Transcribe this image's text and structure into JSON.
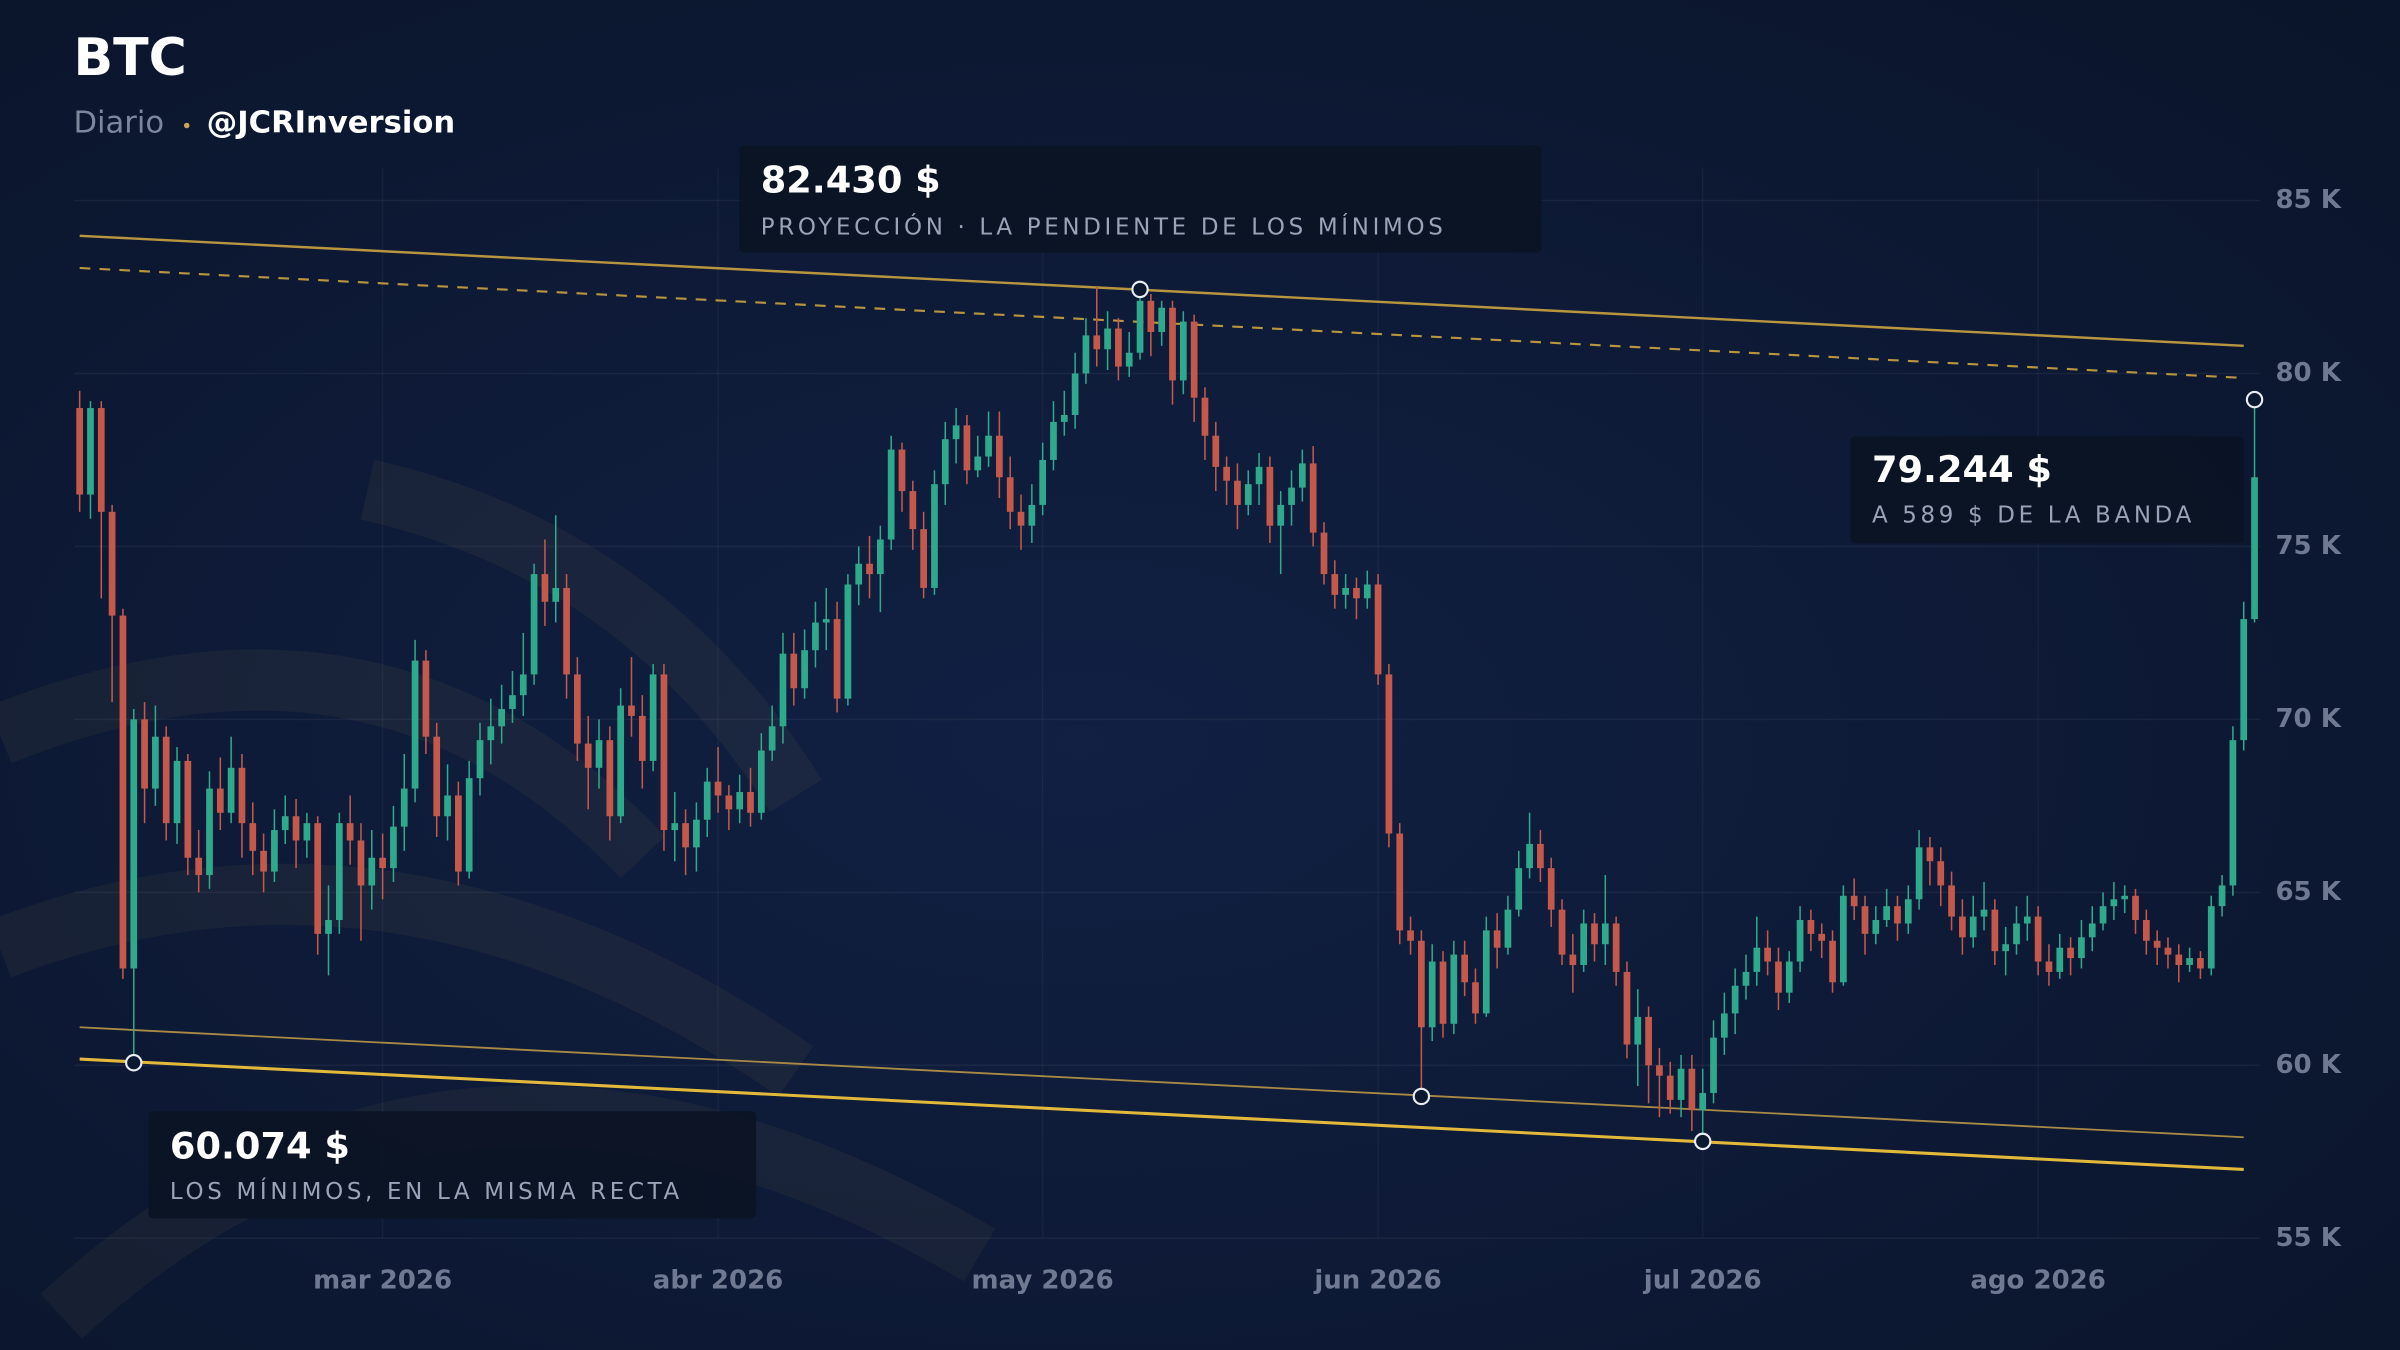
{
  "chart_data": {
    "type": "candlestick",
    "title": "BTC",
    "subtitle": "Diario",
    "author": "@JCRInversion",
    "up_color": "#2fa98c",
    "down_color": "#c4594b",
    "xlim": [
      -0.5,
      201.5
    ],
    "xticks": [
      {
        "value": 28,
        "label": "mar 2026"
      },
      {
        "value": 59,
        "label": "abr 2026"
      },
      {
        "value": 89,
        "label": "may 2026"
      },
      {
        "value": 120,
        "label": "jun 2026"
      },
      {
        "value": 150,
        "label": "jul 2026"
      },
      {
        "value": 181,
        "label": "ago 2026"
      }
    ],
    "ylim": [
      55,
      85
    ],
    "yticks": [
      {
        "value": 55,
        "label": "55 K"
      },
      {
        "value": 60,
        "label": "60 K"
      },
      {
        "value": 65,
        "label": "65 K"
      },
      {
        "value": 70,
        "label": "70 K"
      },
      {
        "value": 75,
        "label": "75 K"
      },
      {
        "value": 80,
        "label": "80 K"
      },
      {
        "value": 85,
        "label": "85 K"
      }
    ],
    "grid": true,
    "ohlc": [
      [
        79,
        79.5,
        76,
        76.5
      ],
      [
        76.5,
        79.2,
        75.8,
        79
      ],
      [
        79,
        79.2,
        73.5,
        76
      ],
      [
        76,
        76.2,
        70.5,
        73
      ],
      [
        73,
        73.2,
        62.5,
        62.8
      ],
      [
        62.8,
        70.3,
        60.074,
        70
      ],
      [
        70,
        70.5,
        67,
        68
      ],
      [
        68,
        70.4,
        67.5,
        69.5
      ],
      [
        69.5,
        69.8,
        66.5,
        67
      ],
      [
        67,
        69.2,
        66.4,
        68.8
      ],
      [
        68.8,
        69,
        65.5,
        66
      ],
      [
        66,
        66.8,
        65,
        65.5
      ],
      [
        65.5,
        68.5,
        65.1,
        68
      ],
      [
        68,
        68.9,
        66.8,
        67.3
      ],
      [
        67.3,
        69.5,
        67,
        68.6
      ],
      [
        68.6,
        69,
        66,
        67
      ],
      [
        67,
        67.6,
        65.5,
        66.2
      ],
      [
        66.2,
        66.7,
        65,
        65.6
      ],
      [
        65.6,
        67.4,
        65.3,
        66.8
      ],
      [
        66.8,
        67.8,
        66.4,
        67.2
      ],
      [
        67.2,
        67.7,
        65.7,
        66.5
      ],
      [
        66.5,
        67.3,
        66,
        67
      ],
      [
        67,
        67.2,
        63.2,
        63.8
      ],
      [
        63.8,
        65.2,
        62.6,
        64.2
      ],
      [
        64.2,
        67.3,
        63.8,
        67
      ],
      [
        67,
        67.8,
        65.8,
        66.5
      ],
      [
        66.5,
        67,
        63.6,
        65.2
      ],
      [
        65.2,
        66.8,
        64.5,
        66
      ],
      [
        66,
        66.7,
        64.8,
        65.7
      ],
      [
        65.7,
        67.5,
        65.3,
        66.9
      ],
      [
        66.9,
        69,
        66.2,
        68
      ],
      [
        68,
        72.3,
        67.6,
        71.7
      ],
      [
        71.7,
        72,
        69,
        69.5
      ],
      [
        69.5,
        69.9,
        66.6,
        67.2
      ],
      [
        67.2,
        68.7,
        66.5,
        67.8
      ],
      [
        67.8,
        68.2,
        65.2,
        65.6
      ],
      [
        65.6,
        68.8,
        65.4,
        68.3
      ],
      [
        68.3,
        69.9,
        67.8,
        69.4
      ],
      [
        69.4,
        70.6,
        68.7,
        69.8
      ],
      [
        69.8,
        71,
        69.3,
        70.3
      ],
      [
        70.3,
        71.4,
        69.9,
        70.7
      ],
      [
        70.7,
        72.5,
        70.1,
        71.3
      ],
      [
        71.3,
        74.5,
        71,
        74.2
      ],
      [
        74.2,
        75.2,
        72.7,
        73.4
      ],
      [
        73.4,
        75.9,
        72.8,
        73.8
      ],
      [
        73.8,
        74.2,
        70.6,
        71.3
      ],
      [
        71.3,
        71.8,
        68.8,
        69.3
      ],
      [
        69.3,
        70.1,
        67.4,
        68.6
      ],
      [
        68.6,
        70,
        68,
        69.4
      ],
      [
        69.4,
        69.8,
        66.5,
        67.2
      ],
      [
        67.2,
        70.9,
        67,
        70.4
      ],
      [
        70.4,
        71.8,
        69.5,
        70.1
      ],
      [
        70.1,
        70.7,
        68,
        68.8
      ],
      [
        68.8,
        71.6,
        68.5,
        71.3
      ],
      [
        71.3,
        71.6,
        66.2,
        66.8
      ],
      [
        66.8,
        67.9,
        65.9,
        67
      ],
      [
        67,
        67.4,
        65.5,
        66.3
      ],
      [
        66.3,
        67.6,
        65.6,
        67.1
      ],
      [
        67.1,
        68.6,
        66.6,
        68.2
      ],
      [
        68.2,
        69.2,
        67.3,
        67.8
      ],
      [
        67.8,
        68.1,
        66.8,
        67.4
      ],
      [
        67.4,
        68.4,
        67,
        67.9
      ],
      [
        67.9,
        68.6,
        66.9,
        67.3
      ],
      [
        67.3,
        69.6,
        67.1,
        69.1
      ],
      [
        69.1,
        70.4,
        68.8,
        69.8
      ],
      [
        69.8,
        72.5,
        69.3,
        71.9
      ],
      [
        71.9,
        72.5,
        70.4,
        70.9
      ],
      [
        70.9,
        72.6,
        70.6,
        72
      ],
      [
        72,
        73.4,
        71.5,
        72.8
      ],
      [
        72.8,
        73.8,
        72,
        72.9
      ],
      [
        72.9,
        73.4,
        70.2,
        70.6
      ],
      [
        70.6,
        74.2,
        70.4,
        73.9
      ],
      [
        73.9,
        75,
        73.3,
        74.5
      ],
      [
        74.5,
        75.3,
        73.5,
        74.2
      ],
      [
        74.2,
        75.6,
        73.1,
        75.2
      ],
      [
        75.2,
        78.2,
        74.9,
        77.8
      ],
      [
        77.8,
        78,
        76,
        76.6
      ],
      [
        76.6,
        76.9,
        74.9,
        75.5
      ],
      [
        75.5,
        76,
        73.5,
        73.8
      ],
      [
        73.8,
        77.2,
        73.6,
        76.8
      ],
      [
        76.8,
        78.6,
        76.2,
        78.1
      ],
      [
        78.1,
        79,
        77.4,
        78.5
      ],
      [
        78.5,
        78.8,
        76.8,
        77.2
      ],
      [
        77.2,
        78.2,
        77,
        77.6
      ],
      [
        77.6,
        78.9,
        77.3,
        78.2
      ],
      [
        78.2,
        78.9,
        76.4,
        77
      ],
      [
        77,
        77.6,
        75.5,
        76
      ],
      [
        76,
        76.5,
        74.9,
        75.6
      ],
      [
        75.6,
        76.8,
        75.1,
        76.2
      ],
      [
        76.2,
        78,
        75.9,
        77.5
      ],
      [
        77.5,
        79.2,
        77.2,
        78.6
      ],
      [
        78.6,
        79.5,
        78.2,
        78.8
      ],
      [
        78.8,
        80.6,
        78.4,
        80
      ],
      [
        80,
        81.6,
        79.7,
        81.1
      ],
      [
        81.1,
        82.5,
        80.2,
        80.7
      ],
      [
        80.7,
        81.8,
        80.1,
        81.3
      ],
      [
        81.3,
        81.6,
        79.8,
        80.2
      ],
      [
        80.2,
        81.2,
        79.9,
        80.6
      ],
      [
        80.6,
        82.43,
        80.4,
        82.1
      ],
      [
        82.1,
        82.3,
        80.5,
        81.2
      ],
      [
        81.2,
        82.1,
        80.8,
        81.9
      ],
      [
        81.9,
        82.1,
        79.1,
        79.8
      ],
      [
        79.8,
        81.8,
        79.4,
        81.5
      ],
      [
        81.5,
        81.7,
        78.6,
        79.3
      ],
      [
        79.3,
        79.6,
        77.5,
        78.2
      ],
      [
        78.2,
        78.6,
        76.6,
        77.3
      ],
      [
        77.3,
        77.6,
        76.2,
        76.9
      ],
      [
        76.9,
        77.4,
        75.5,
        76.2
      ],
      [
        76.2,
        77.2,
        75.9,
        76.8
      ],
      [
        76.8,
        77.7,
        76.2,
        77.3
      ],
      [
        77.3,
        77.6,
        75.1,
        75.6
      ],
      [
        75.6,
        76.6,
        74.2,
        76.2
      ],
      [
        76.2,
        77.2,
        75.6,
        76.7
      ],
      [
        76.7,
        77.8,
        76.3,
        77.4
      ],
      [
        77.4,
        77.9,
        75,
        75.4
      ],
      [
        75.4,
        75.7,
        73.9,
        74.2
      ],
      [
        74.2,
        74.6,
        73.2,
        73.6
      ],
      [
        73.6,
        74.2,
        73.2,
        73.8
      ],
      [
        73.8,
        74.1,
        72.9,
        73.5
      ],
      [
        73.5,
        74.3,
        73.2,
        73.9
      ],
      [
        73.9,
        74.2,
        71,
        71.3
      ],
      [
        71.3,
        71.6,
        66.3,
        66.7
      ],
      [
        66.7,
        67,
        63.5,
        63.9
      ],
      [
        63.9,
        64.3,
        63.2,
        63.6
      ],
      [
        63.6,
        63.9,
        59.1,
        61.1
      ],
      [
        61.1,
        63.5,
        60.7,
        63
      ],
      [
        63,
        63.3,
        60.8,
        61.2
      ],
      [
        61.2,
        63.6,
        60.9,
        63.2
      ],
      [
        63.2,
        63.6,
        62,
        62.4
      ],
      [
        62.4,
        62.8,
        61.2,
        61.5
      ],
      [
        61.5,
        64.3,
        61.4,
        63.9
      ],
      [
        63.9,
        64.4,
        62.8,
        63.4
      ],
      [
        63.4,
        64.9,
        63.2,
        64.5
      ],
      [
        64.5,
        66.2,
        64.3,
        65.7
      ],
      [
        65.7,
        67.3,
        65.4,
        66.4
      ],
      [
        66.4,
        66.8,
        65.3,
        65.7
      ],
      [
        65.7,
        66,
        64,
        64.5
      ],
      [
        64.5,
        64.8,
        62.9,
        63.2
      ],
      [
        63.2,
        63.8,
        62.1,
        62.9
      ],
      [
        62.9,
        64.5,
        62.7,
        64.1
      ],
      [
        64.1,
        64.4,
        63,
        63.5
      ],
      [
        63.5,
        65.5,
        62.9,
        64.1
      ],
      [
        64.1,
        64.3,
        62.3,
        62.7
      ],
      [
        62.7,
        63,
        60.2,
        60.6
      ],
      [
        60.6,
        62.2,
        59.4,
        61.4
      ],
      [
        61.4,
        61.7,
        58.9,
        60
      ],
      [
        60,
        60.5,
        58.5,
        59.7
      ],
      [
        59.7,
        60.1,
        58.6,
        59
      ],
      [
        59,
        60.3,
        58.5,
        59.9
      ],
      [
        59.9,
        60.3,
        58.1,
        58.7
      ],
      [
        58.7,
        59.9,
        57.8,
        59.2
      ],
      [
        59.2,
        61.3,
        58.9,
        60.8
      ],
      [
        60.8,
        62.1,
        60.3,
        61.5
      ],
      [
        61.5,
        62.8,
        60.9,
        62.3
      ],
      [
        62.3,
        63.2,
        61.9,
        62.7
      ],
      [
        62.7,
        64.3,
        62.3,
        63.4
      ],
      [
        63.4,
        63.9,
        62.6,
        63
      ],
      [
        63,
        63.4,
        61.6,
        62.1
      ],
      [
        62.1,
        63.3,
        61.8,
        63
      ],
      [
        63,
        64.6,
        62.7,
        64.2
      ],
      [
        64.2,
        64.5,
        63.3,
        63.8
      ],
      [
        63.8,
        64.1,
        63.1,
        63.6
      ],
      [
        63.6,
        63.9,
        62.1,
        62.4
      ],
      [
        62.4,
        65.2,
        62.3,
        64.9
      ],
      [
        64.9,
        65.4,
        64.2,
        64.6
      ],
      [
        64.6,
        64.9,
        63.2,
        63.8
      ],
      [
        63.8,
        64.6,
        63.5,
        64.2
      ],
      [
        64.2,
        65.1,
        64,
        64.6
      ],
      [
        64.6,
        64.9,
        63.6,
        64.1
      ],
      [
        64.1,
        65.2,
        63.8,
        64.8
      ],
      [
        64.8,
        66.8,
        64.5,
        66.3
      ],
      [
        66.3,
        66.6,
        65.2,
        65.9
      ],
      [
        65.9,
        66.3,
        64.6,
        65.2
      ],
      [
        65.2,
        65.6,
        63.9,
        64.3
      ],
      [
        64.3,
        64.8,
        63.2,
        63.7
      ],
      [
        63.7,
        64.9,
        63.4,
        64.3
      ],
      [
        64.3,
        65.3,
        63.9,
        64.5
      ],
      [
        64.5,
        64.8,
        62.9,
        63.3
      ],
      [
        63.3,
        64,
        62.6,
        63.5
      ],
      [
        63.5,
        64.6,
        63.2,
        64.1
      ],
      [
        64.1,
        64.9,
        63.6,
        64.3
      ],
      [
        64.3,
        64.6,
        62.6,
        63
      ],
      [
        63,
        63.5,
        62.3,
        62.7
      ],
      [
        62.7,
        63.8,
        62.5,
        63.4
      ],
      [
        63.4,
        63.7,
        62.6,
        63.1
      ],
      [
        63.1,
        64.2,
        62.8,
        63.7
      ],
      [
        63.7,
        64.6,
        63.3,
        64.1
      ],
      [
        64.1,
        65,
        63.9,
        64.6
      ],
      [
        64.6,
        65.3,
        64.2,
        64.8
      ],
      [
        64.8,
        65.2,
        64.4,
        64.9
      ],
      [
        64.9,
        65.1,
        63.8,
        64.2
      ],
      [
        64.2,
        64.5,
        63.2,
        63.6
      ],
      [
        63.6,
        63.9,
        62.9,
        63.4
      ],
      [
        63.4,
        63.7,
        62.8,
        63.2
      ],
      [
        63.2,
        63.5,
        62.4,
        62.9
      ],
      [
        62.9,
        63.4,
        62.7,
        63.1
      ],
      [
        63.1,
        63.3,
        62.5,
        62.8
      ],
      [
        62.8,
        64.9,
        62.6,
        64.6
      ],
      [
        64.6,
        65.5,
        64.3,
        65.2
      ],
      [
        65.2,
        69.8,
        64.9,
        69.4
      ],
      [
        69.4,
        73.4,
        69.1,
        72.9
      ],
      [
        72.9,
        79.244,
        72.8,
        77
      ]
    ],
    "lines": [
      {
        "x": [
          0,
          200
        ],
        "values": [
          83.98,
          80.8
        ],
        "color": "#b8953f",
        "dashed": false,
        "width": 1.6
      },
      {
        "x": [
          0,
          200
        ],
        "values": [
          83.05,
          79.87
        ],
        "color": "#b8953f",
        "dashed": true,
        "width": 1.4
      },
      {
        "x": [
          0,
          200
        ],
        "values": [
          61.1,
          57.92
        ],
        "color": "#a88a45",
        "dashed": false,
        "width": 1.2
      },
      {
        "x": [
          0,
          200
        ],
        "values": [
          60.18,
          56.99
        ],
        "color": "#e2b93b",
        "dashed": false,
        "width": 2
      }
    ],
    "points": {
      "x": [
        5,
        98,
        124,
        150,
        201
      ],
      "values": [
        60.074,
        82.43,
        59.1,
        57.8,
        79.244
      ],
      "color": "#e9ecf2"
    },
    "annotations": [
      {
        "title": "82.430 $",
        "text": "PROYECCIÓN · LA PENDIENTE DE LOS MÍNIMOS"
      },
      {
        "title": "79.244 $",
        "text": "A 589 $ DE LA BANDA"
      },
      {
        "title": "60.074 $",
        "text": "LOS MÍNIMOS, EN LA MISMA RECTA"
      }
    ]
  }
}
